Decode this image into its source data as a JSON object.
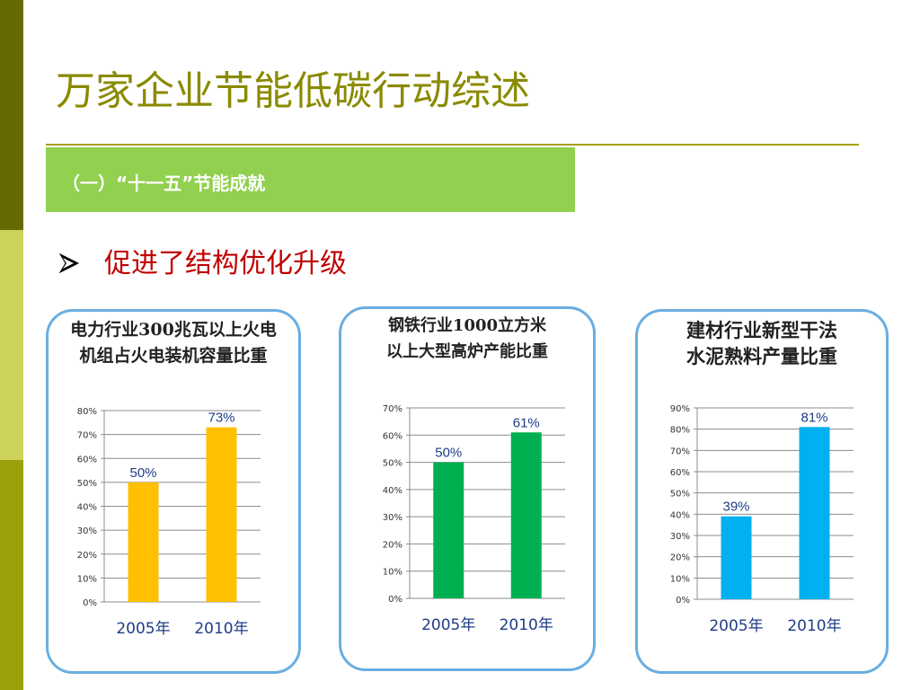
{
  "slide": {
    "title": "万家企业节能低碳行动综述",
    "section_label": "（一）“十一五”节能成就",
    "bullet_text": "促进了结构优化升级"
  },
  "colors": {
    "title": "#8a8a00",
    "banner": "#92d050",
    "bullet": "#c00000",
    "card_border": "#6aaee0"
  },
  "chart_data": [
    {
      "type": "bar",
      "title_lines": [
        "电力行业300兆瓦以上火电",
        "机组占火电装机容量比重"
      ],
      "categories": [
        "2005年",
        "2010年"
      ],
      "values": [
        50,
        73
      ],
      "value_labels": [
        "50%",
        "73%"
      ],
      "color": "#ffc000",
      "ylim": [
        0,
        80
      ],
      "yticks": [
        "0%",
        "10%",
        "20%",
        "30%",
        "40%",
        "50%",
        "60%",
        "70%",
        "80%"
      ],
      "grid": true
    },
    {
      "type": "bar",
      "title_lines": [
        "钢铁行业1000立方米",
        "以上大型高炉产能比重"
      ],
      "categories": [
        "2005年",
        "2010年"
      ],
      "values": [
        50,
        61
      ],
      "value_labels": [
        "50%",
        "61%"
      ],
      "color": "#00b050",
      "ylim": [
        0,
        70
      ],
      "yticks": [
        "0%",
        "10%",
        "20%",
        "30%",
        "40%",
        "50%",
        "60%",
        "70%"
      ],
      "grid": true
    },
    {
      "type": "bar",
      "title_lines": [
        "建材行业新型干法",
        "水泥熟料产量比重"
      ],
      "categories": [
        "2005年",
        "2010年"
      ],
      "values": [
        39,
        81
      ],
      "value_labels": [
        "39%",
        "81%"
      ],
      "color": "#00b0f0",
      "ylim": [
        0,
        90
      ],
      "yticks": [
        "0%",
        "10%",
        "20%",
        "30%",
        "40%",
        "50%",
        "60%",
        "70%",
        "80%",
        "90%"
      ],
      "grid": true
    }
  ]
}
